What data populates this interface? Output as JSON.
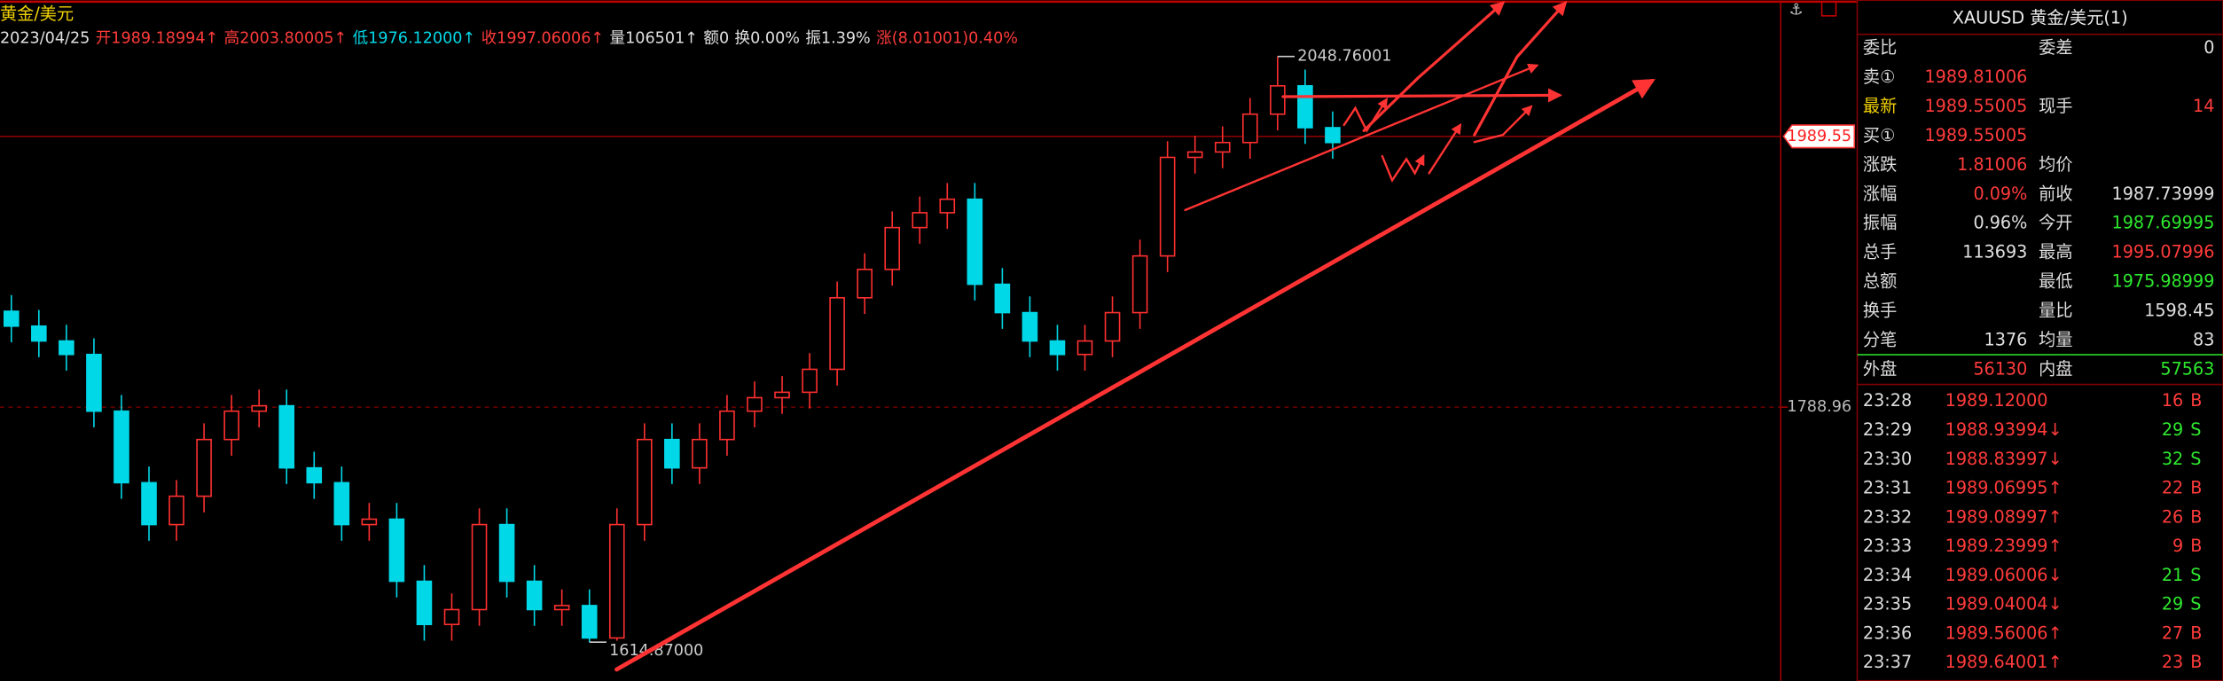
{
  "chart_data": {
    "type": "candlestick",
    "symbol": "黄金/美元",
    "header": [
      {
        "text": "2023/04/25",
        "color": "#e0e0e0"
      },
      {
        "text": "开1989.18994↑",
        "color": "#ff3b3b"
      },
      {
        "text": "高2003.80005↑",
        "color": "#ff3b3b"
      },
      {
        "text": "低1976.12000↑",
        "color": "#00d8e8"
      },
      {
        "text": "收1997.06006↑",
        "color": "#ff3b3b"
      },
      {
        "text": "量106501↑",
        "color": "#e0e0e0"
      },
      {
        "text": "额0",
        "color": "#e0e0e0"
      },
      {
        "text": "换0.00%",
        "color": "#e0e0e0"
      },
      {
        "text": "振1.39%",
        "color": "#e0e0e0"
      },
      {
        "text": "涨(8.01001)0.40%",
        "color": "#ff3b3b"
      }
    ],
    "up_color": "#ff3030",
    "down_color": "#00d8e8",
    "open": [
      1860,
      1849,
      1838,
      1828,
      1786,
      1733,
      1702,
      1723,
      1765,
      1786,
      1790,
      1744,
      1733,
      1702,
      1706,
      1660,
      1628,
      1639,
      1702,
      1660,
      1639,
      1642,
      1618,
      1702,
      1765,
      1744,
      1765,
      1786,
      1796,
      1800,
      1817,
      1870,
      1891,
      1922,
      1933,
      1943,
      1880,
      1859,
      1838,
      1828,
      1838,
      1859,
      1901,
      1974,
      1978,
      1985,
      2006,
      2027,
      1996
    ],
    "high": [
      1872,
      1861,
      1850,
      1840,
      1798,
      1745,
      1735,
      1777,
      1798,
      1802,
      1802,
      1756,
      1745,
      1718,
      1718,
      1672,
      1651,
      1714,
      1714,
      1672,
      1654,
      1654,
      1714,
      1777,
      1777,
      1777,
      1798,
      1808,
      1812,
      1829,
      1882,
      1903,
      1934,
      1945,
      1955,
      1955,
      1892,
      1871,
      1850,
      1850,
      1871,
      1913,
      1986,
      1990,
      1997,
      2018,
      2048.76001,
      2039,
      2008
    ],
    "low": [
      1837,
      1826,
      1816,
      1774,
      1721,
      1690,
      1690,
      1711,
      1753,
      1774,
      1732,
      1721,
      1690,
      1690,
      1648,
      1616,
      1616,
      1627,
      1648,
      1627,
      1627,
      1614.87,
      1616,
      1690,
      1732,
      1732,
      1753,
      1774,
      1784,
      1788,
      1805,
      1858,
      1879,
      1910,
      1921,
      1868,
      1847,
      1826,
      1816,
      1816,
      1826,
      1847,
      1889,
      1962,
      1966,
      1973,
      1994,
      1984,
      1973
    ],
    "close": [
      1849,
      1838,
      1828,
      1786,
      1733,
      1702,
      1723,
      1765,
      1786,
      1790,
      1744,
      1733,
      1702,
      1706,
      1660,
      1628,
      1639,
      1702,
      1660,
      1639,
      1642,
      1618,
      1702,
      1765,
      1744,
      1765,
      1786,
      1796,
      1800,
      1817,
      1870,
      1891,
      1922,
      1933,
      1943,
      1880,
      1859,
      1838,
      1828,
      1838,
      1859,
      1901,
      1974,
      1978,
      1985,
      2006,
      2027,
      1996,
      1985
    ],
    "ylim": [
      1586.3,
      2090.4
    ],
    "yticks": [
      1788.96
    ],
    "last_price": 1989.55,
    "annotations": [
      {
        "value": 2048.76001,
        "label": "2048.76001"
      },
      {
        "value": 1614.87,
        "label": "1614.87000"
      }
    ]
  },
  "quote_panel": {
    "title": "XAUUSD 黄金/美元(1)",
    "rows": [
      {
        "l1": "委比",
        "l2": "委差",
        "v2": "0",
        "c2": "#e0e0e0"
      },
      {
        "l1": "卖①",
        "v1": "1989.81006",
        "c1": "#ff3b3b"
      },
      {
        "l1": "最新",
        "v1": "1989.55005",
        "c1": "#ff3b3b",
        "l2": "现手",
        "v2": "14",
        "c2": "#ff3b3b"
      },
      {
        "l1": "买①",
        "v1": "1989.55005",
        "c1": "#ff3b3b"
      },
      {
        "l1": "涨跌",
        "v1": "1.81006",
        "c1": "#ff3b3b",
        "l2": "均价"
      },
      {
        "l1": "涨幅",
        "v1": "0.09%",
        "c1": "#ff3b3b",
        "l2": "前收",
        "v2": "1987.73999",
        "c2": "#e0e0e0"
      },
      {
        "l1": "振幅",
        "v1": "0.96%",
        "c1": "#e0e0e0",
        "l2": "今开",
        "v2": "1987.69995",
        "c2": "#2ee82e"
      },
      {
        "l1": "总手",
        "v1": "113693",
        "c1": "#e0e0e0",
        "l2": "最高",
        "v2": "1995.07996",
        "c2": "#ff3b3b"
      },
      {
        "l1": "总额",
        "l2": "最低",
        "v2": "1975.98999",
        "c2": "#2ee82e"
      },
      {
        "l1": "换手",
        "l2": "量比",
        "v2": "1598.45",
        "c2": "#e0e0e0"
      },
      {
        "l1": "分笔",
        "v1": "1376",
        "c1": "#e0e0e0",
        "l2": "均量",
        "v2": "83",
        "c2": "#e0e0e0"
      },
      {
        "l1": "外盘",
        "v1": "56130",
        "c1": "#ff3b3b",
        "l2": "内盘",
        "v2": "57563",
        "c2": "#2ee82e"
      }
    ],
    "ticks": [
      {
        "time": "23:28",
        "price": "1989.12000",
        "vol": "16",
        "side": "B",
        "color": "#ff3b3b"
      },
      {
        "time": "23:29",
        "price": "1988.93994↓",
        "vol": "29",
        "side": "S",
        "color": "#2ee82e"
      },
      {
        "time": "23:30",
        "price": "1988.83997↓",
        "vol": "32",
        "side": "S",
        "color": "#2ee82e"
      },
      {
        "time": "23:31",
        "price": "1989.06995↑",
        "vol": "22",
        "side": "B",
        "color": "#ff3b3b"
      },
      {
        "time": "23:32",
        "price": "1989.08997↑",
        "vol": "26",
        "side": "B",
        "color": "#ff3b3b"
      },
      {
        "time": "23:33",
        "price": "1989.23999↑",
        "vol": "9",
        "side": "B",
        "color": "#ff3b3b"
      },
      {
        "time": "23:34",
        "price": "1989.06006↓",
        "vol": "21",
        "side": "S",
        "color": "#2ee82e"
      },
      {
        "time": "23:35",
        "price": "1989.04004↓",
        "vol": "29",
        "side": "S",
        "color": "#2ee82e"
      },
      {
        "time": "23:36",
        "price": "1989.56006↑",
        "vol": "27",
        "side": "B",
        "color": "#ff3b3b"
      },
      {
        "time": "23:37",
        "price": "1989.64001↑",
        "vol": "23",
        "side": "B",
        "color": "#ff3b3b"
      }
    ]
  }
}
